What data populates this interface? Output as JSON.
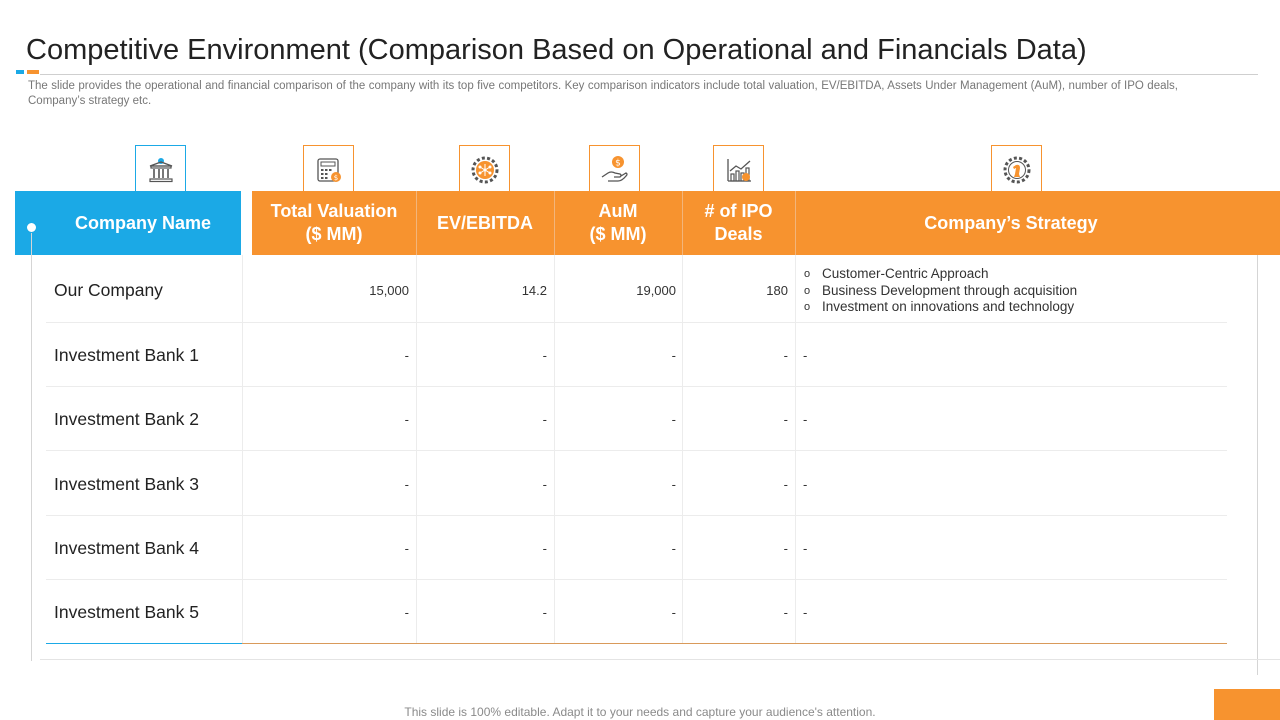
{
  "slide": {
    "title": "Competitive Environment (Comparison Based on Operational and Financials Data)",
    "subtitle": "The slide provides  the operational and financial comparison of the company with its top five  competitors. Key comparison indicators include total valuation,  EV/EBITDA, Assets Under Management (AuM), number of IPO deals, Company’s  strategy etc.",
    "footer": "This slide is 100% editable. Adapt it to your needs and capture your audience's attention."
  },
  "colors": {
    "blue": "#1ba9e6",
    "orange": "#f7932f"
  },
  "icons": [
    "bank-icon",
    "calculator-icon",
    "gear-network-icon",
    "money-hand-icon",
    "growth-chart-icon",
    "gear-chess-icon"
  ],
  "table": {
    "headers": {
      "company": "Company Name",
      "valuation": "Total Valuation\n($ MM)",
      "ev": "EV/EBITDA",
      "aum": "AuM\n($ MM)",
      "ipo": "# of IPO\nDeals",
      "strategy": "Company’s Strategy"
    },
    "rows": [
      {
        "name": "Our Company",
        "valuation": "15,000",
        "ev": "14.2",
        "aum": "19,000",
        "ipo": "180",
        "strategy": ""
      },
      {
        "name": "Investment Bank 1",
        "valuation": "-",
        "ev": "-",
        "aum": "-",
        "ipo": "-",
        "strategy": "-"
      },
      {
        "name": "Investment Bank 2",
        "valuation": "-",
        "ev": "-",
        "aum": "-",
        "ipo": "-",
        "strategy": "-"
      },
      {
        "name": "Investment Bank 3",
        "valuation": "-",
        "ev": "-",
        "aum": "-",
        "ipo": "-",
        "strategy": "-"
      },
      {
        "name": "Investment Bank 4",
        "valuation": "-",
        "ev": "-",
        "aum": "-",
        "ipo": "-",
        "strategy": "-"
      },
      {
        "name": "Investment Bank 5",
        "valuation": "-",
        "ev": "-",
        "aum": "-",
        "ipo": "-",
        "strategy": "-"
      }
    ],
    "our_company_strategy": [
      "Customer-Centric Approach",
      "Business Development through acquisition",
      "Investment on innovations and technology"
    ],
    "bullet": "o"
  }
}
